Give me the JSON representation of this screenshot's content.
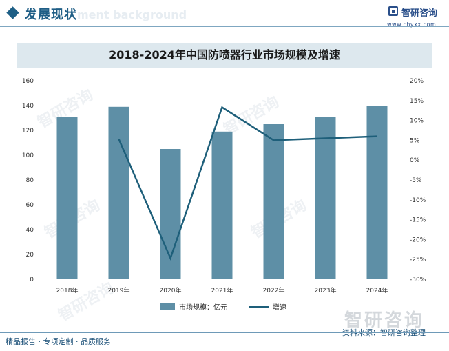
{
  "header": {
    "title": "发展现状",
    "ghost_text": "ment background",
    "brand": "智研咨询",
    "url": "www.chyxx.com"
  },
  "chart_data": {
    "type": "bar",
    "title": "2018-2024年中国防喷器行业市场规模及增速",
    "categories": [
      "2018年",
      "2019年",
      "2020年",
      "2021年",
      "2022年",
      "2023年",
      "2024年"
    ],
    "series": [
      {
        "name": "市场规模：亿元",
        "type": "bar",
        "axis": "left",
        "color": "#5e8fa6",
        "values": [
          131,
          139,
          105,
          119,
          125,
          131,
          140
        ]
      },
      {
        "name": "增速",
        "type": "line",
        "axis": "right",
        "color": "#1e5f7a",
        "values": [
          null,
          5.3,
          -24.7,
          13.3,
          5.0,
          5.5,
          6.0
        ]
      }
    ],
    "y_left": {
      "range": [
        0,
        160
      ],
      "ticks": [
        "0",
        "20",
        "40",
        "60",
        "80",
        "100",
        "120",
        "140",
        "160"
      ]
    },
    "y_right": {
      "range": [
        -30,
        20
      ],
      "ticks": [
        "-30%",
        "-25%",
        "-20%",
        "-15%",
        "-10%",
        "-5%",
        "0%",
        "5%",
        "10%",
        "15%",
        "20%"
      ]
    },
    "grid": false,
    "legend_position": "bottom"
  },
  "watermark": {
    "brand": "智研咨询"
  },
  "footer": {
    "left": "精品报告 · 专项定制 · 品质服务",
    "right": "资料来源：智研咨询整理"
  }
}
